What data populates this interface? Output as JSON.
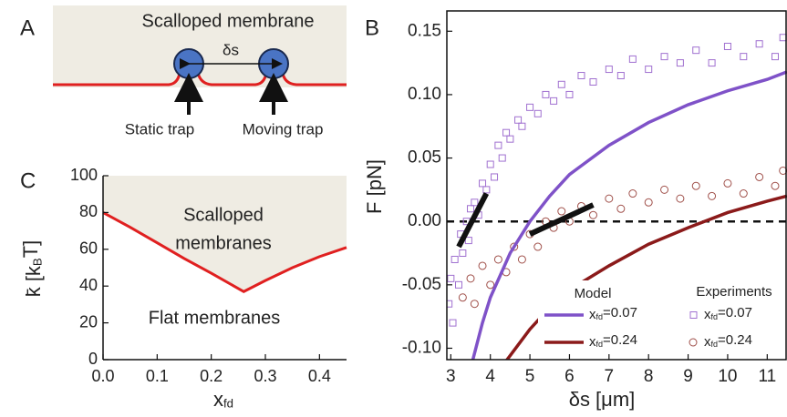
{
  "panel_labels": [
    "A",
    "B",
    "C"
  ],
  "diagram": {
    "title": "Scalloped membrane",
    "distance": "δs",
    "left_trap": "Static trap",
    "right_trap": "Moving trap"
  },
  "chart_data": [
    {
      "type": "line",
      "xlabel": "xfd",
      "ylabel": "k̄ [kBT]",
      "annotations": [
        "Scalloped",
        "membranes",
        "Flat membranes"
      ],
      "x": [
        0,
        0.05,
        0.1,
        0.15,
        0.2,
        0.26,
        0.3,
        0.35,
        0.4,
        0.45
      ],
      "values": [
        80,
        72,
        63.5,
        55,
        47,
        37,
        43,
        50,
        56,
        61
      ],
      "color": "#e02020",
      "fill_color": "#efece3",
      "xlim": [
        0,
        0.45
      ],
      "ylim": [
        0,
        100
      ],
      "xticks": [
        {
          "value": 0,
          "label": "0.0"
        },
        0.1,
        0.2,
        0.3,
        0.4
      ],
      "yticks": [
        0,
        20,
        40,
        60,
        80,
        100
      ]
    },
    {
      "type": "scatter",
      "xlabel": "δs [μm]",
      "ylabel": "F [pN]",
      "legend_titles": [
        "Model",
        "Experiments"
      ],
      "hline": 0,
      "xlim": [
        2.9,
        11.5
      ],
      "ylim": [
        -0.109,
        0.166
      ],
      "xticks": [
        3,
        4,
        5,
        6,
        7,
        8,
        9,
        10,
        11
      ],
      "yticks": [
        {
          "value": -0.1,
          "label": "-0.10"
        },
        {
          "value": -0.05,
          "label": "-0.05"
        },
        {
          "value": 0,
          "label": "0.00"
        },
        {
          "value": 0.05,
          "label": "0.05"
        },
        {
          "value": 0.1,
          "label": "0.10"
        },
        0.15
      ],
      "slopes": [
        {
          "x": [
            3.2,
            3.9
          ],
          "values": [
            -0.02,
            0.022
          ]
        },
        {
          "x": [
            5,
            6.6
          ],
          "values": [
            -0.01,
            0.013
          ]
        }
      ],
      "series": [
        {
          "name": "xfd=0.07",
          "mode": "line",
          "color": "#7f52c8",
          "x": [
            3.55,
            3.8,
            4,
            4.5,
            5,
            5.5,
            6,
            7,
            8,
            9,
            10,
            11,
            11.5
          ],
          "values": [
            -0.11,
            -0.08,
            -0.06,
            -0.025,
            0,
            0.02,
            0.037,
            0.06,
            0.078,
            0.092,
            0.103,
            0.112,
            0.118
          ]
        },
        {
          "name": "xfd=0.24",
          "mode": "line",
          "color": "#8b1a1a",
          "x": [
            4.4,
            5,
            5.5,
            6,
            7,
            8,
            9,
            10,
            11,
            11.5
          ],
          "values": [
            -0.11,
            -0.085,
            -0.068,
            -0.054,
            -0.035,
            -0.018,
            -0.005,
            0.007,
            0.016,
            0.02
          ]
        },
        {
          "name": "xfd=0.07",
          "mode": "marker",
          "marker": "square",
          "color": "#a070d0",
          "x": [
            2.95,
            3.0,
            3.05,
            3.1,
            3.2,
            3.25,
            3.3,
            3.4,
            3.45,
            3.5,
            3.6,
            3.7,
            3.8,
            3.9,
            4.0,
            4.1,
            4.2,
            4.3,
            4.4,
            4.5,
            4.7,
            4.8,
            5.0,
            5.2,
            5.4,
            5.6,
            5.8,
            6.0,
            6.3,
            6.6,
            7.0,
            7.3,
            7.6,
            8.0,
            8.4,
            8.8,
            9.2,
            9.6,
            10.0,
            10.4,
            10.8,
            11.2,
            11.4
          ],
          "values": [
            -0.065,
            -0.045,
            -0.08,
            -0.03,
            -0.05,
            -0.01,
            -0.025,
            0.0,
            -0.015,
            0.01,
            0.015,
            0.005,
            0.03,
            0.025,
            0.045,
            0.035,
            0.06,
            0.05,
            0.07,
            0.065,
            0.08,
            0.075,
            0.09,
            0.085,
            0.1,
            0.095,
            0.108,
            0.1,
            0.115,
            0.11,
            0.12,
            0.115,
            0.128,
            0.12,
            0.13,
            0.125,
            0.135,
            0.125,
            0.138,
            0.13,
            0.14,
            0.13,
            0.145
          ]
        },
        {
          "name": "xfd=0.24",
          "mode": "marker",
          "marker": "circle",
          "color": "#a0504a",
          "x": [
            3.3,
            3.5,
            3.6,
            3.8,
            4.0,
            4.2,
            4.4,
            4.6,
            4.8,
            5.0,
            5.2,
            5.4,
            5.6,
            5.8,
            6.0,
            6.3,
            6.6,
            7.0,
            7.3,
            7.6,
            8.0,
            8.4,
            8.8,
            9.2,
            9.6,
            10.0,
            10.4,
            10.8,
            11.2,
            11.4
          ],
          "values": [
            -0.06,
            -0.045,
            -0.065,
            -0.035,
            -0.05,
            -0.03,
            -0.04,
            -0.02,
            -0.03,
            -0.01,
            -0.02,
            0.0,
            -0.005,
            0.008,
            0.0,
            0.012,
            0.005,
            0.018,
            0.01,
            0.022,
            0.015,
            0.025,
            0.018,
            0.028,
            0.02,
            0.03,
            0.022,
            0.035,
            0.028,
            0.04
          ]
        }
      ]
    }
  ]
}
